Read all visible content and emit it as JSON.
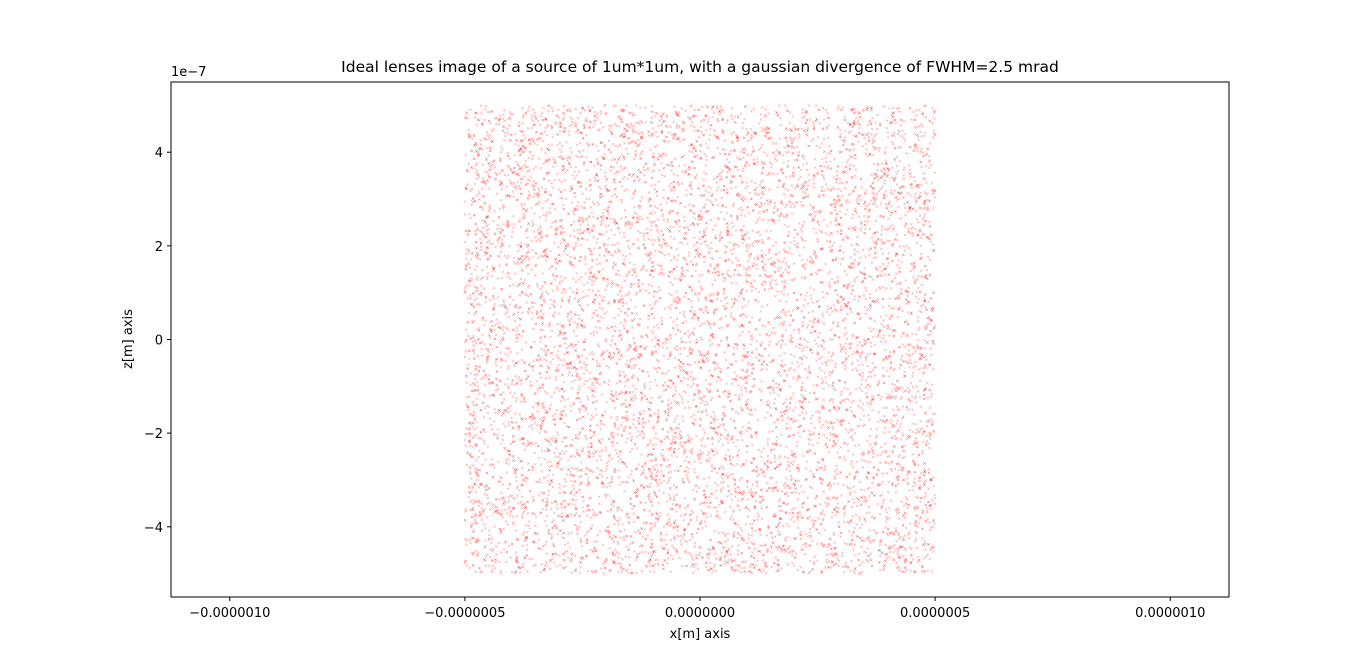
{
  "chart_data": {
    "type": "scatter",
    "title": "Ideal lenses image of a source of 1um*1um, with a gaussian divergence of FWHM=2.5 mrad",
    "xlabel": "x[m] axis",
    "ylabel": "z[m] axis",
    "y_offset_label": "1e−7",
    "xlim": [
      -1.125e-06,
      1.125e-06
    ],
    "ylim": [
      -5.5e-07,
      5.5e-07
    ],
    "x_ticks": [
      {
        "value": -1e-06,
        "label": "−0.0000010"
      },
      {
        "value": -5e-07,
        "label": "−0.0000005"
      },
      {
        "value": 0,
        "label": "0.0000000"
      },
      {
        "value": 5e-07,
        "label": "0.0000005"
      },
      {
        "value": 1e-06,
        "label": "0.0000010"
      }
    ],
    "y_ticks": [
      {
        "value": 4e-07,
        "label": "4"
      },
      {
        "value": 2e-07,
        "label": "2"
      },
      {
        "value": 0,
        "label": "0"
      },
      {
        "value": -2e-07,
        "label": "−2"
      },
      {
        "value": -4e-07,
        "label": "−4"
      }
    ],
    "series": [
      {
        "marker_color": "#ff0000",
        "marker": "x",
        "distribution": "uniform",
        "x_range": [
          -5e-07,
          5e-07
        ],
        "y_range": [
          -5e-07,
          5e-07
        ],
        "count": 10000
      }
    ],
    "grid": false,
    "legend": "none"
  }
}
